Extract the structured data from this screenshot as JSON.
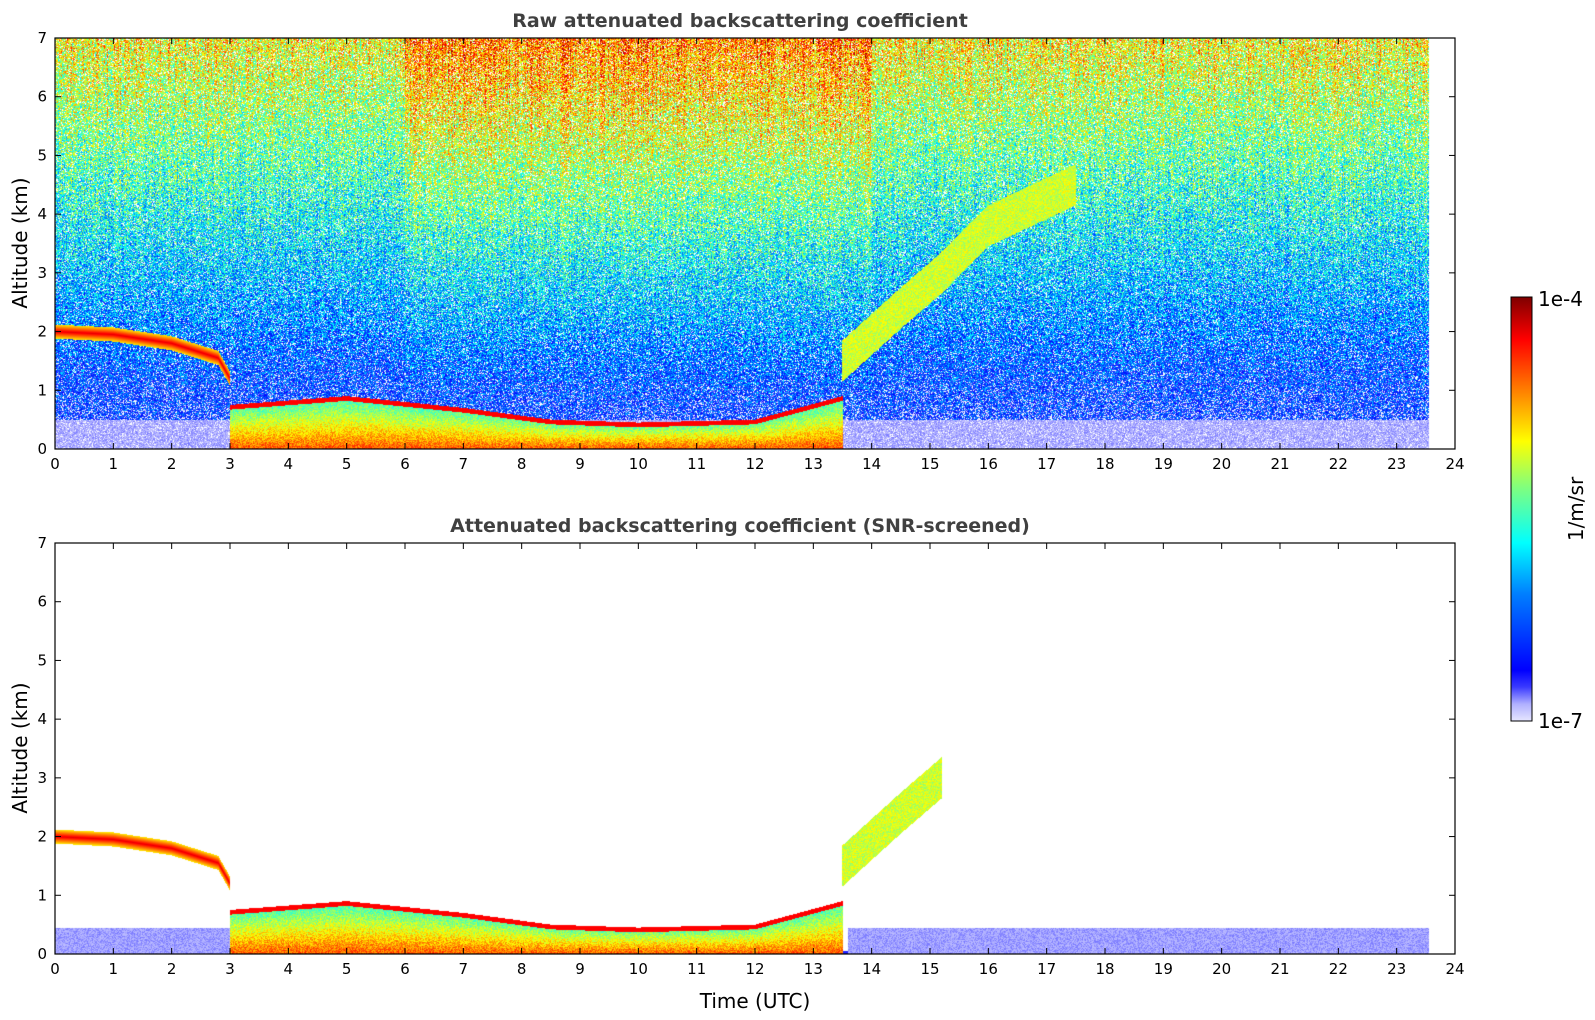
{
  "colors": {
    "colormap": [
      "#00007f",
      "#0000ff",
      "#007fff",
      "#00ffff",
      "#7fff7f",
      "#ffff00",
      "#ff7f00",
      "#ff0000",
      "#7f0000"
    ],
    "low_end": "#e6e6ff",
    "axis": "#000000",
    "title": "#404040"
  },
  "chart_data": [
    {
      "type": "heatmap",
      "title": "Raw attenuated backscattering coefficient",
      "ylabel": "Altitude (km)",
      "xlabel": "",
      "xlim": [
        0,
        24
      ],
      "ylim": [
        0,
        7
      ],
      "xticks": [
        "0",
        "1",
        "2",
        "3",
        "4",
        "5",
        "6",
        "7",
        "8",
        "9",
        "10",
        "11",
        "12",
        "13",
        "14",
        "15",
        "16",
        "17",
        "18",
        "19",
        "20",
        "21",
        "22",
        "23",
        "24"
      ],
      "yticks": [
        "0",
        "1",
        "2",
        "3",
        "4",
        "5",
        "6",
        "7"
      ],
      "data_end_time": 23.55,
      "layers": [
        {
          "name": "elevated layer",
          "points": [
            [
              0,
              2.0
            ],
            [
              1,
              1.95
            ],
            [
              2,
              1.8
            ],
            [
              2.8,
              1.55
            ],
            [
              3.0,
              1.2
            ]
          ]
        },
        {
          "name": "boundary layer",
          "points": [
            [
              3,
              0.75
            ],
            [
              5,
              0.9
            ],
            [
              7,
              0.7
            ],
            [
              8.5,
              0.5
            ],
            [
              10,
              0.45
            ],
            [
              12,
              0.5
            ],
            [
              13.5,
              0.9
            ]
          ]
        },
        {
          "name": "aerosol plume",
          "points": [
            [
              13.5,
              1.5
            ],
            [
              14.5,
              2.4
            ],
            [
              15.2,
              3.0
            ],
            [
              16,
              3.8
            ],
            [
              17.5,
              4.5
            ]
          ]
        }
      ],
      "noise_increase_with_altitude": true
    },
    {
      "type": "heatmap",
      "title": "Attenuated backscattering coefficient (SNR-screened)",
      "ylabel": "Altitude (km)",
      "xlabel": "Time (UTC)",
      "xlim": [
        0,
        24
      ],
      "ylim": [
        0,
        7
      ],
      "xticks": [
        "0",
        "1",
        "2",
        "3",
        "4",
        "5",
        "6",
        "7",
        "8",
        "9",
        "10",
        "11",
        "12",
        "13",
        "14",
        "15",
        "16",
        "17",
        "18",
        "19",
        "20",
        "21",
        "22",
        "23",
        "24"
      ],
      "yticks": [
        "0",
        "1",
        "2",
        "3",
        "4",
        "5",
        "6",
        "7"
      ],
      "data_end_time": 23.55,
      "layers": [
        {
          "name": "elevated layer",
          "points": [
            [
              0,
              2.0
            ],
            [
              1,
              1.95
            ],
            [
              2,
              1.8
            ],
            [
              2.8,
              1.55
            ],
            [
              3.0,
              1.2
            ]
          ]
        },
        {
          "name": "boundary layer",
          "points": [
            [
              3,
              0.75
            ],
            [
              5,
              0.9
            ],
            [
              7,
              0.7
            ],
            [
              8.5,
              0.5
            ],
            [
              10,
              0.45
            ],
            [
              12,
              0.5
            ],
            [
              13.5,
              0.9
            ]
          ]
        },
        {
          "name": "aerosol plume",
          "points": [
            [
              13.5,
              1.5
            ],
            [
              14.5,
              2.4
            ],
            [
              15.2,
              3.0
            ]
          ]
        }
      ],
      "noise_increase_with_altitude": false
    }
  ],
  "colorbar": {
    "label": "1/m/sr",
    "max_label": "1e-4",
    "min_label": "1e-7",
    "range": [
      "1e-7",
      "1e-4"
    ],
    "scale": "log"
  }
}
